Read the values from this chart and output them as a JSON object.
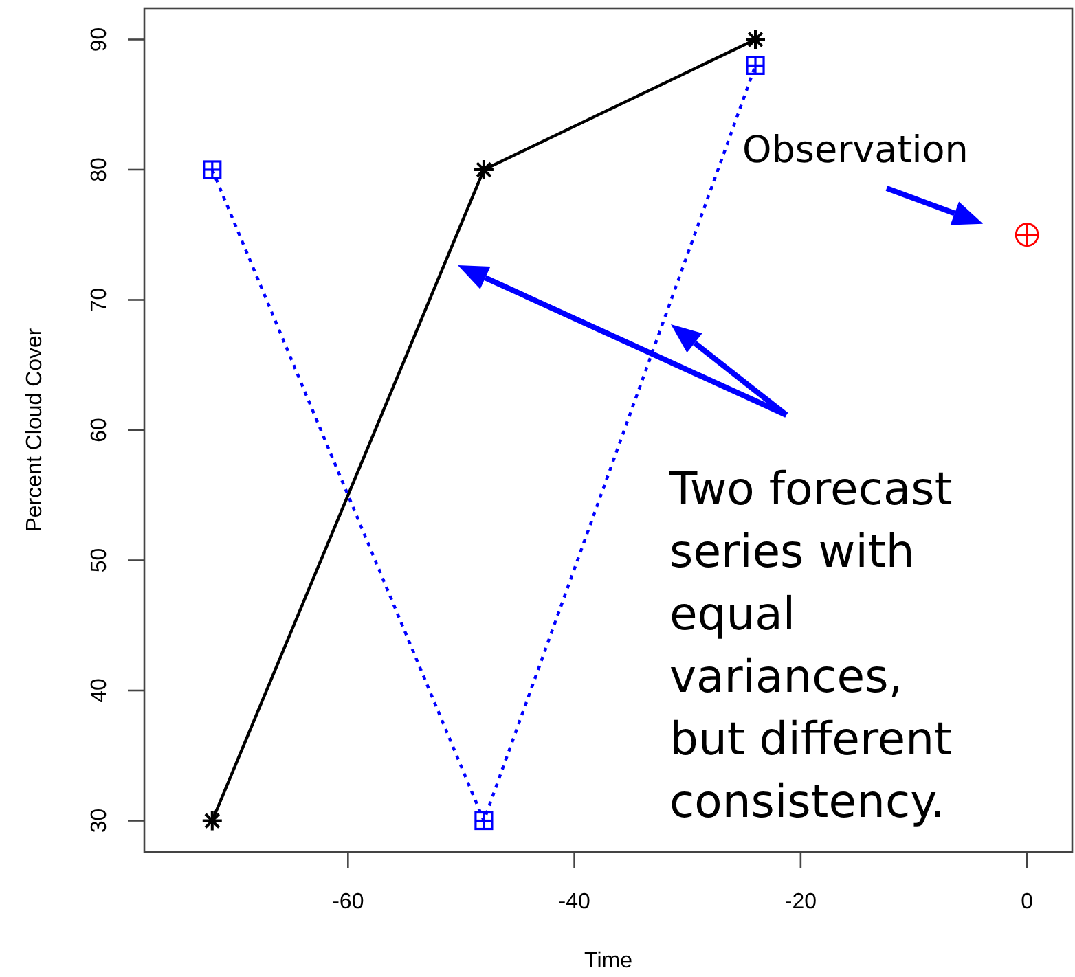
{
  "chart_data": {
    "type": "line",
    "xlabel": "Time",
    "ylabel": "Percent Cloud Cover",
    "xlim": [
      -78,
      4
    ],
    "ylim": [
      27.6,
      92.4
    ],
    "xticks": [
      -60,
      -40,
      -20,
      0
    ],
    "yticks": [
      30,
      40,
      50,
      60,
      70,
      80,
      90
    ],
    "grid": false,
    "series": [
      {
        "color": "#000000",
        "x": [
          -72,
          -48,
          -24
        ],
        "values": [
          30,
          80,
          90
        ],
        "marker": "cross",
        "line_style": "solid"
      },
      {
        "color": "#0000ff",
        "x": [
          -72,
          -48,
          -24
        ],
        "values": [
          80,
          30,
          88
        ],
        "marker": "square",
        "line_style": "dotted"
      },
      {
        "type": "scatter",
        "color": "#ff0000",
        "x": [
          0
        ],
        "values": [
          75
        ],
        "marker": "circle"
      }
    ],
    "annotations": [
      {
        "text": "Observation",
        "x": 0,
        "y": 75
      },
      "Two forecast\nseries with\nequal\nvariances,\nbut different\nconsistency."
    ]
  }
}
